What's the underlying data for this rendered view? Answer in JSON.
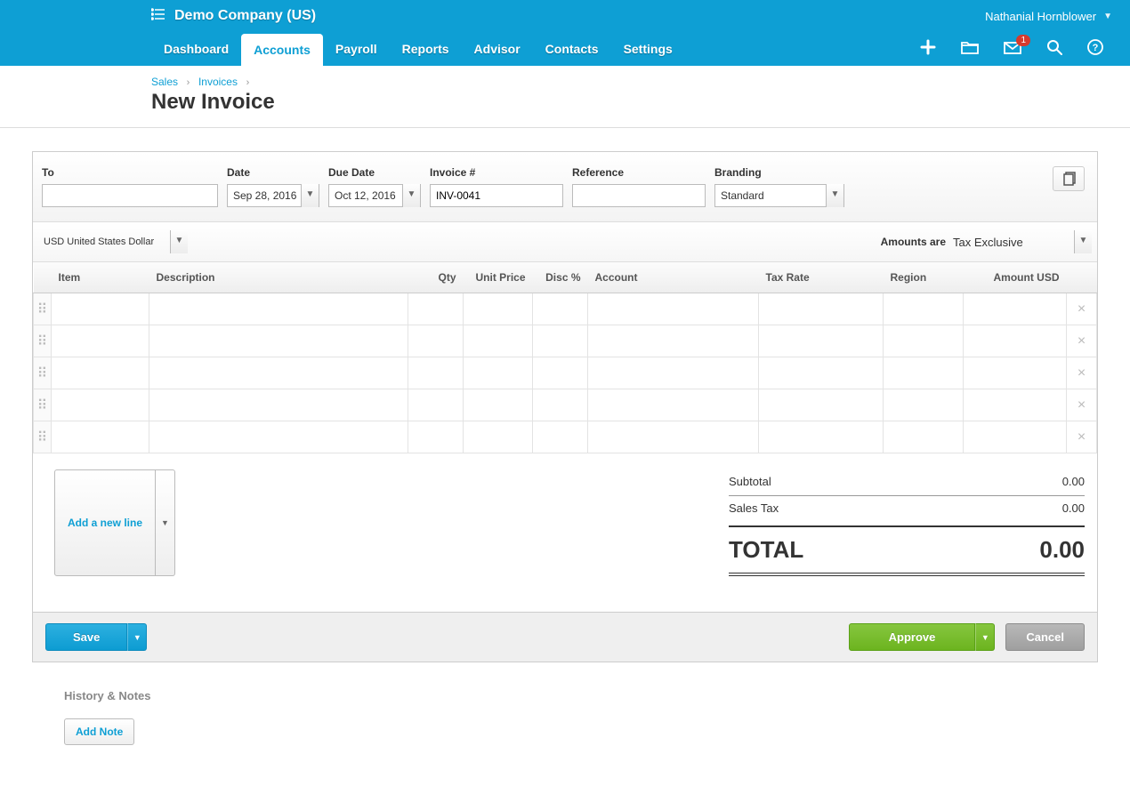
{
  "topbar": {
    "company": "Demo Company (US)",
    "user": "Nathanial Hornblower"
  },
  "nav": {
    "tabs": [
      "Dashboard",
      "Accounts",
      "Payroll",
      "Reports",
      "Advisor",
      "Contacts",
      "Settings"
    ],
    "active": "Accounts",
    "notif_count": "1"
  },
  "breadcrumb": {
    "a": "Sales",
    "b": "Invoices",
    "title": "New Invoice"
  },
  "form": {
    "to_label": "To",
    "to_value": "",
    "date_label": "Date",
    "date_value": "Sep 28, 2016",
    "due_label": "Due Date",
    "due_value": "Oct 12, 2016",
    "invno_label": "Invoice #",
    "invno_value": "INV-0041",
    "ref_label": "Reference",
    "ref_value": "",
    "brand_label": "Branding",
    "brand_value": "Standard",
    "currency": "USD United States Dollar",
    "amounts_are_label": "Amounts are",
    "amounts_are_value": "Tax Exclusive"
  },
  "columns": {
    "item": "Item",
    "description": "Description",
    "qty": "Qty",
    "unitprice": "Unit Price",
    "disc": "Disc %",
    "account": "Account",
    "taxrate": "Tax Rate",
    "region": "Region",
    "amount": "Amount USD"
  },
  "row_count": 5,
  "addline": "Add a new line",
  "totals": {
    "subtotal_label": "Subtotal",
    "subtotal_value": "0.00",
    "tax_label": "Sales Tax",
    "tax_value": "0.00",
    "total_label": "TOTAL",
    "total_value": "0.00"
  },
  "buttons": {
    "save": "Save",
    "approve": "Approve",
    "cancel": "Cancel"
  },
  "history": {
    "heading": "History & Notes",
    "addnote": "Add Note"
  }
}
